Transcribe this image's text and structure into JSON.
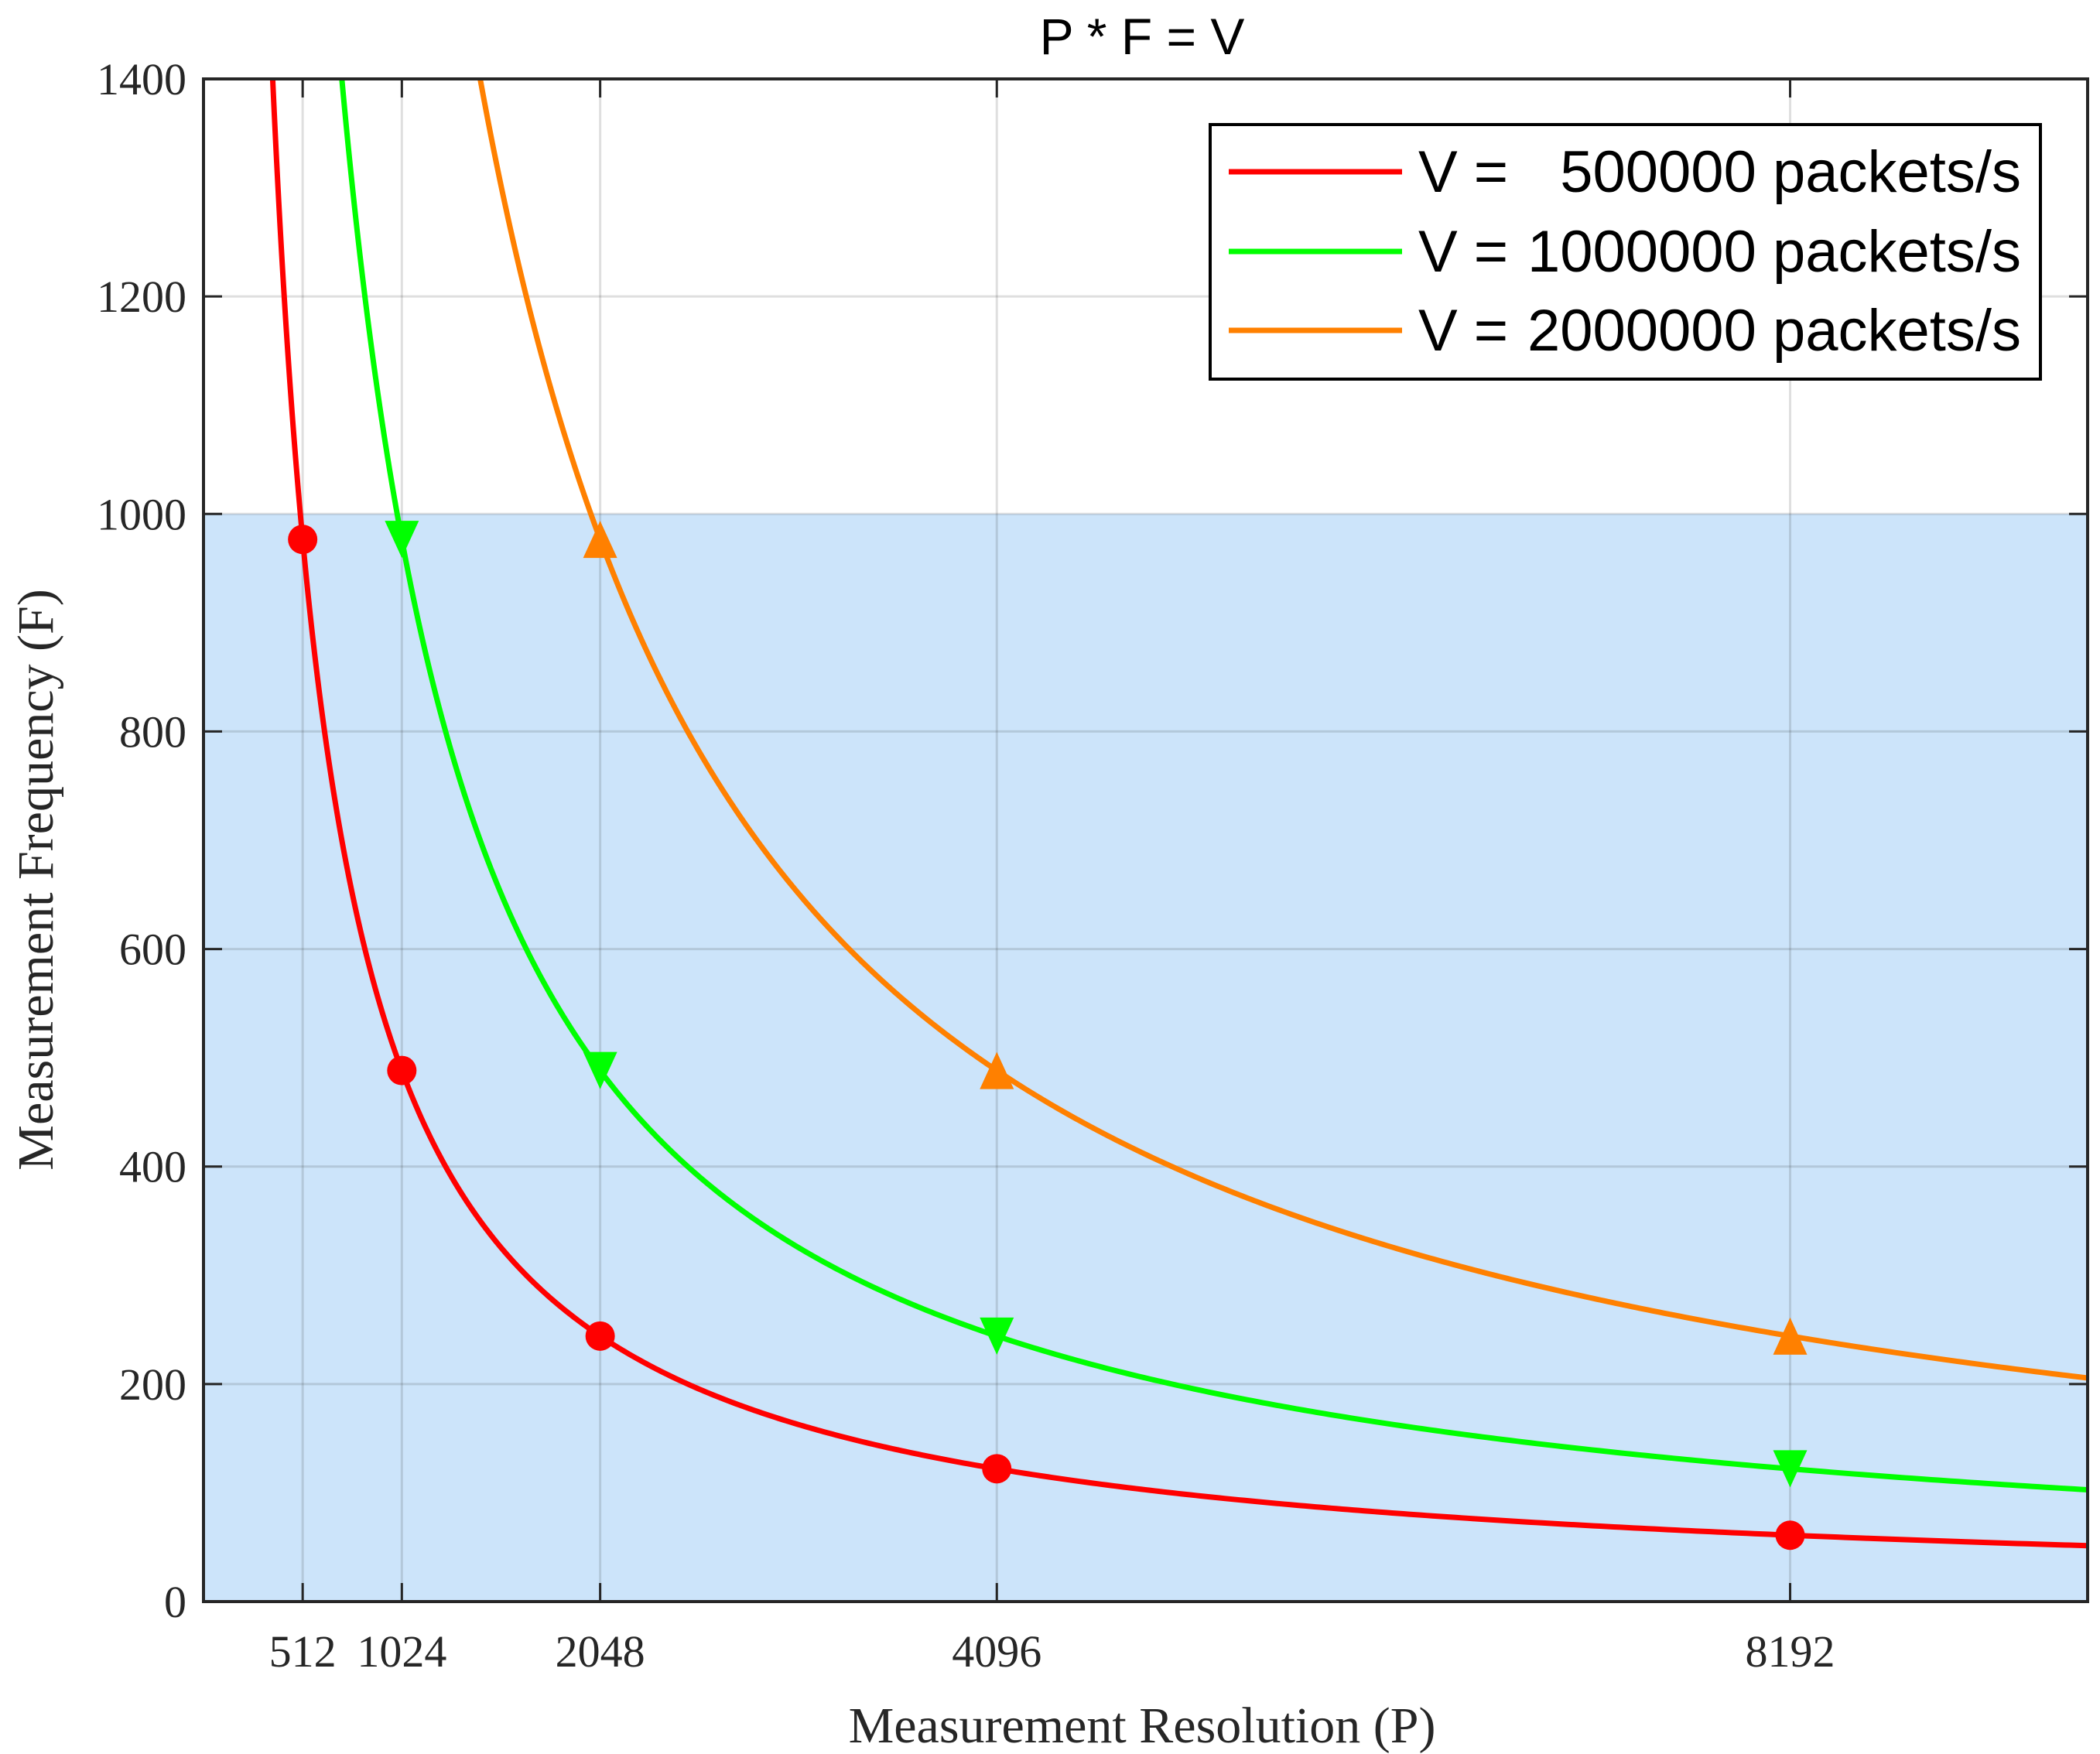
{
  "chart_data": {
    "type": "line",
    "title": "P * F = V",
    "xlabel": "Measurement Resolution (P)",
    "ylabel": "Measurement Frequency (F)",
    "xlim": [
      0,
      9728
    ],
    "ylim": [
      0,
      1400
    ],
    "x_ticks": [
      512,
      1024,
      2048,
      4096,
      8192
    ],
    "x_tick_labels": [
      "512",
      "1024",
      "2048",
      "4096",
      "8192"
    ],
    "y_ticks": [
      0,
      200,
      400,
      600,
      800,
      1000,
      1200,
      1400
    ],
    "y_tick_labels": [
      "0",
      "200",
      "400",
      "600",
      "800",
      "1000",
      "1200",
      "1400"
    ],
    "grid": true,
    "legend_position": "top-right",
    "shaded_region": {
      "y_from": 0,
      "y_to": 1000,
      "color": "#cce4fa"
    },
    "series": [
      {
        "name": "V = 500000 packets/s",
        "legend_prefix": "V =",
        "legend_value": "500000 packets/s",
        "V": 500000,
        "color": "#ff0000",
        "marker": "circle",
        "marker_x": [
          512,
          1024,
          2048,
          4096,
          8192
        ],
        "marker_y": [
          976.6,
          488.3,
          244.1,
          122.1,
          61.0
        ]
      },
      {
        "name": "V = 1000000 packets/s",
        "legend_prefix": "V =",
        "legend_value": "1000000 packets/s",
        "V": 1000000,
        "color": "#00ff00",
        "marker": "triangle-down",
        "marker_x": [
          1024,
          2048,
          4096,
          8192
        ],
        "marker_y": [
          976.6,
          488.3,
          244.1,
          122.1
        ]
      },
      {
        "name": "V = 2000000 packets/s",
        "legend_prefix": "V =",
        "legend_value": "2000000 packets/s",
        "V": 2000000,
        "color": "#ff8000",
        "marker": "triangle-up",
        "marker_x": [
          2048,
          4096,
          8192
        ],
        "marker_y": [
          976.6,
          488.3,
          244.1
        ]
      }
    ]
  }
}
